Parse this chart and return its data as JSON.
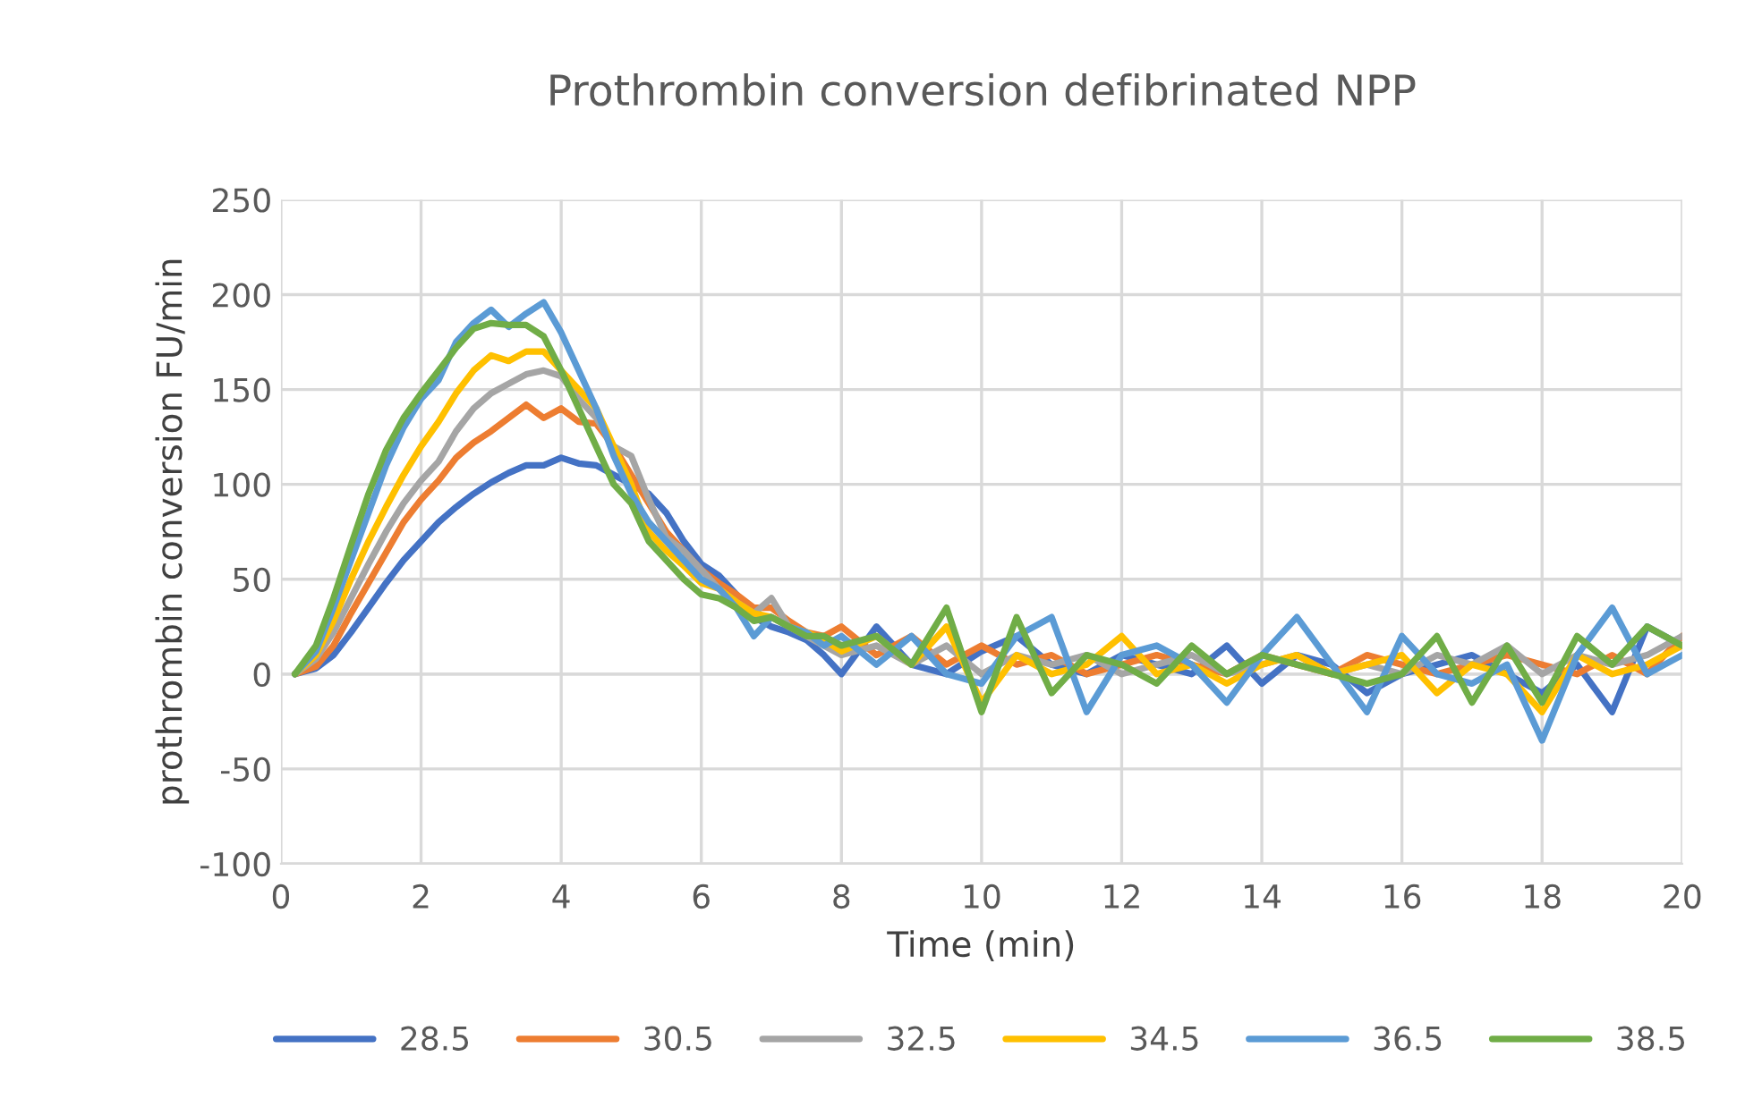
{
  "chart_data": {
    "type": "line",
    "title": "Prothrombin conversion defibrinated NPP",
    "xlabel": "Time (min)",
    "ylabel": "prothrombin conversion FU/min",
    "x": [
      0.2,
      0.5,
      0.75,
      1,
      1.25,
      1.5,
      1.75,
      2,
      2.25,
      2.5,
      2.75,
      3,
      3.25,
      3.5,
      3.75,
      4,
      4.25,
      4.5,
      4.75,
      5,
      5.25,
      5.5,
      5.75,
      6,
      6.25,
      6.5,
      6.75,
      7,
      7.25,
      7.5,
      7.75,
      8,
      8.5,
      9,
      9.5,
      10,
      10.5,
      11,
      11.5,
      12,
      12.5,
      13,
      13.5,
      14,
      14.5,
      15,
      15.5,
      16,
      16.5,
      17,
      17.5,
      18,
      18.5,
      19,
      19.5,
      20
    ],
    "series": [
      {
        "name": "28.5",
        "color": "#4472c4",
        "values": [
          0,
          3,
          10,
          22,
          35,
          48,
          60,
          70,
          80,
          88,
          95,
          101,
          106,
          110,
          110,
          114,
          111,
          110,
          105,
          100,
          95,
          85,
          70,
          58,
          52,
          42,
          30,
          25,
          22,
          18,
          10,
          0,
          25,
          5,
          0,
          12,
          20,
          5,
          0,
          10,
          5,
          0,
          15,
          -5,
          10,
          5,
          -10,
          0,
          5,
          10,
          0,
          -10,
          5,
          -20,
          25,
          15
        ]
      },
      {
        "name": "30.5",
        "color": "#ed7d31",
        "values": [
          0,
          4,
          15,
          32,
          48,
          64,
          80,
          92,
          102,
          114,
          122,
          128,
          135,
          142,
          135,
          140,
          133,
          132,
          120,
          105,
          90,
          75,
          65,
          55,
          48,
          42,
          35,
          35,
          28,
          22,
          20,
          25,
          10,
          20,
          5,
          15,
          5,
          10,
          0,
          5,
          10,
          5,
          0,
          10,
          5,
          0,
          10,
          5,
          0,
          5,
          10,
          5,
          0,
          10,
          0,
          20
        ]
      },
      {
        "name": "32.5",
        "color": "#a5a5a5",
        "values": [
          0,
          8,
          22,
          40,
          58,
          75,
          90,
          102,
          112,
          128,
          140,
          148,
          153,
          158,
          160,
          157,
          145,
          135,
          120,
          115,
          92,
          72,
          65,
          55,
          45,
          38,
          32,
          40,
          25,
          20,
          15,
          10,
          15,
          5,
          15,
          0,
          10,
          5,
          10,
          0,
          5,
          10,
          0,
          5,
          10,
          0,
          5,
          0,
          10,
          5,
          15,
          0,
          10,
          5,
          10,
          20
        ]
      },
      {
        "name": "34.5",
        "color": "#ffc000",
        "values": [
          0,
          10,
          28,
          50,
          70,
          88,
          105,
          120,
          133,
          148,
          160,
          168,
          165,
          170,
          170,
          160,
          150,
          140,
          120,
          100,
          75,
          65,
          57,
          48,
          45,
          38,
          32,
          30,
          25,
          22,
          18,
          12,
          20,
          5,
          25,
          -15,
          10,
          0,
          5,
          20,
          0,
          5,
          -5,
          5,
          10,
          0,
          5,
          10,
          -10,
          5,
          0,
          -20,
          10,
          0,
          5,
          15
        ]
      },
      {
        "name": "36.5",
        "color": "#5b9bd5",
        "values": [
          0,
          12,
          35,
          60,
          85,
          110,
          130,
          145,
          155,
          175,
          185,
          192,
          183,
          190,
          196,
          180,
          160,
          140,
          115,
          95,
          80,
          70,
          60,
          50,
          45,
          35,
          20,
          30,
          25,
          22,
          15,
          20,
          5,
          20,
          0,
          -5,
          20,
          30,
          -20,
          10,
          15,
          5,
          -15,
          10,
          30,
          5,
          -20,
          20,
          0,
          -5,
          5,
          -35,
          10,
          35,
          0,
          10
        ]
      },
      {
        "name": "38.5",
        "color": "#70ad47",
        "values": [
          0,
          15,
          40,
          68,
          95,
          118,
          135,
          148,
          160,
          172,
          182,
          185,
          184,
          184,
          178,
          160,
          140,
          120,
          100,
          90,
          70,
          60,
          50,
          42,
          40,
          35,
          28,
          30,
          25,
          20,
          20,
          15,
          20,
          5,
          35,
          -20,
          30,
          -10,
          10,
          5,
          -5,
          15,
          0,
          10,
          5,
          0,
          -5,
          0,
          20,
          -15,
          15,
          -15,
          20,
          5,
          25,
          15
        ]
      }
    ],
    "xlim": [
      0,
      20
    ],
    "xticks": [
      0,
      2,
      4,
      6,
      8,
      10,
      12,
      14,
      16,
      18,
      20
    ],
    "ylim": [
      -100,
      250
    ],
    "yticks": [
      -100,
      -50,
      0,
      50,
      100,
      150,
      200,
      250
    ],
    "grid": true,
    "legend": "bottom"
  }
}
